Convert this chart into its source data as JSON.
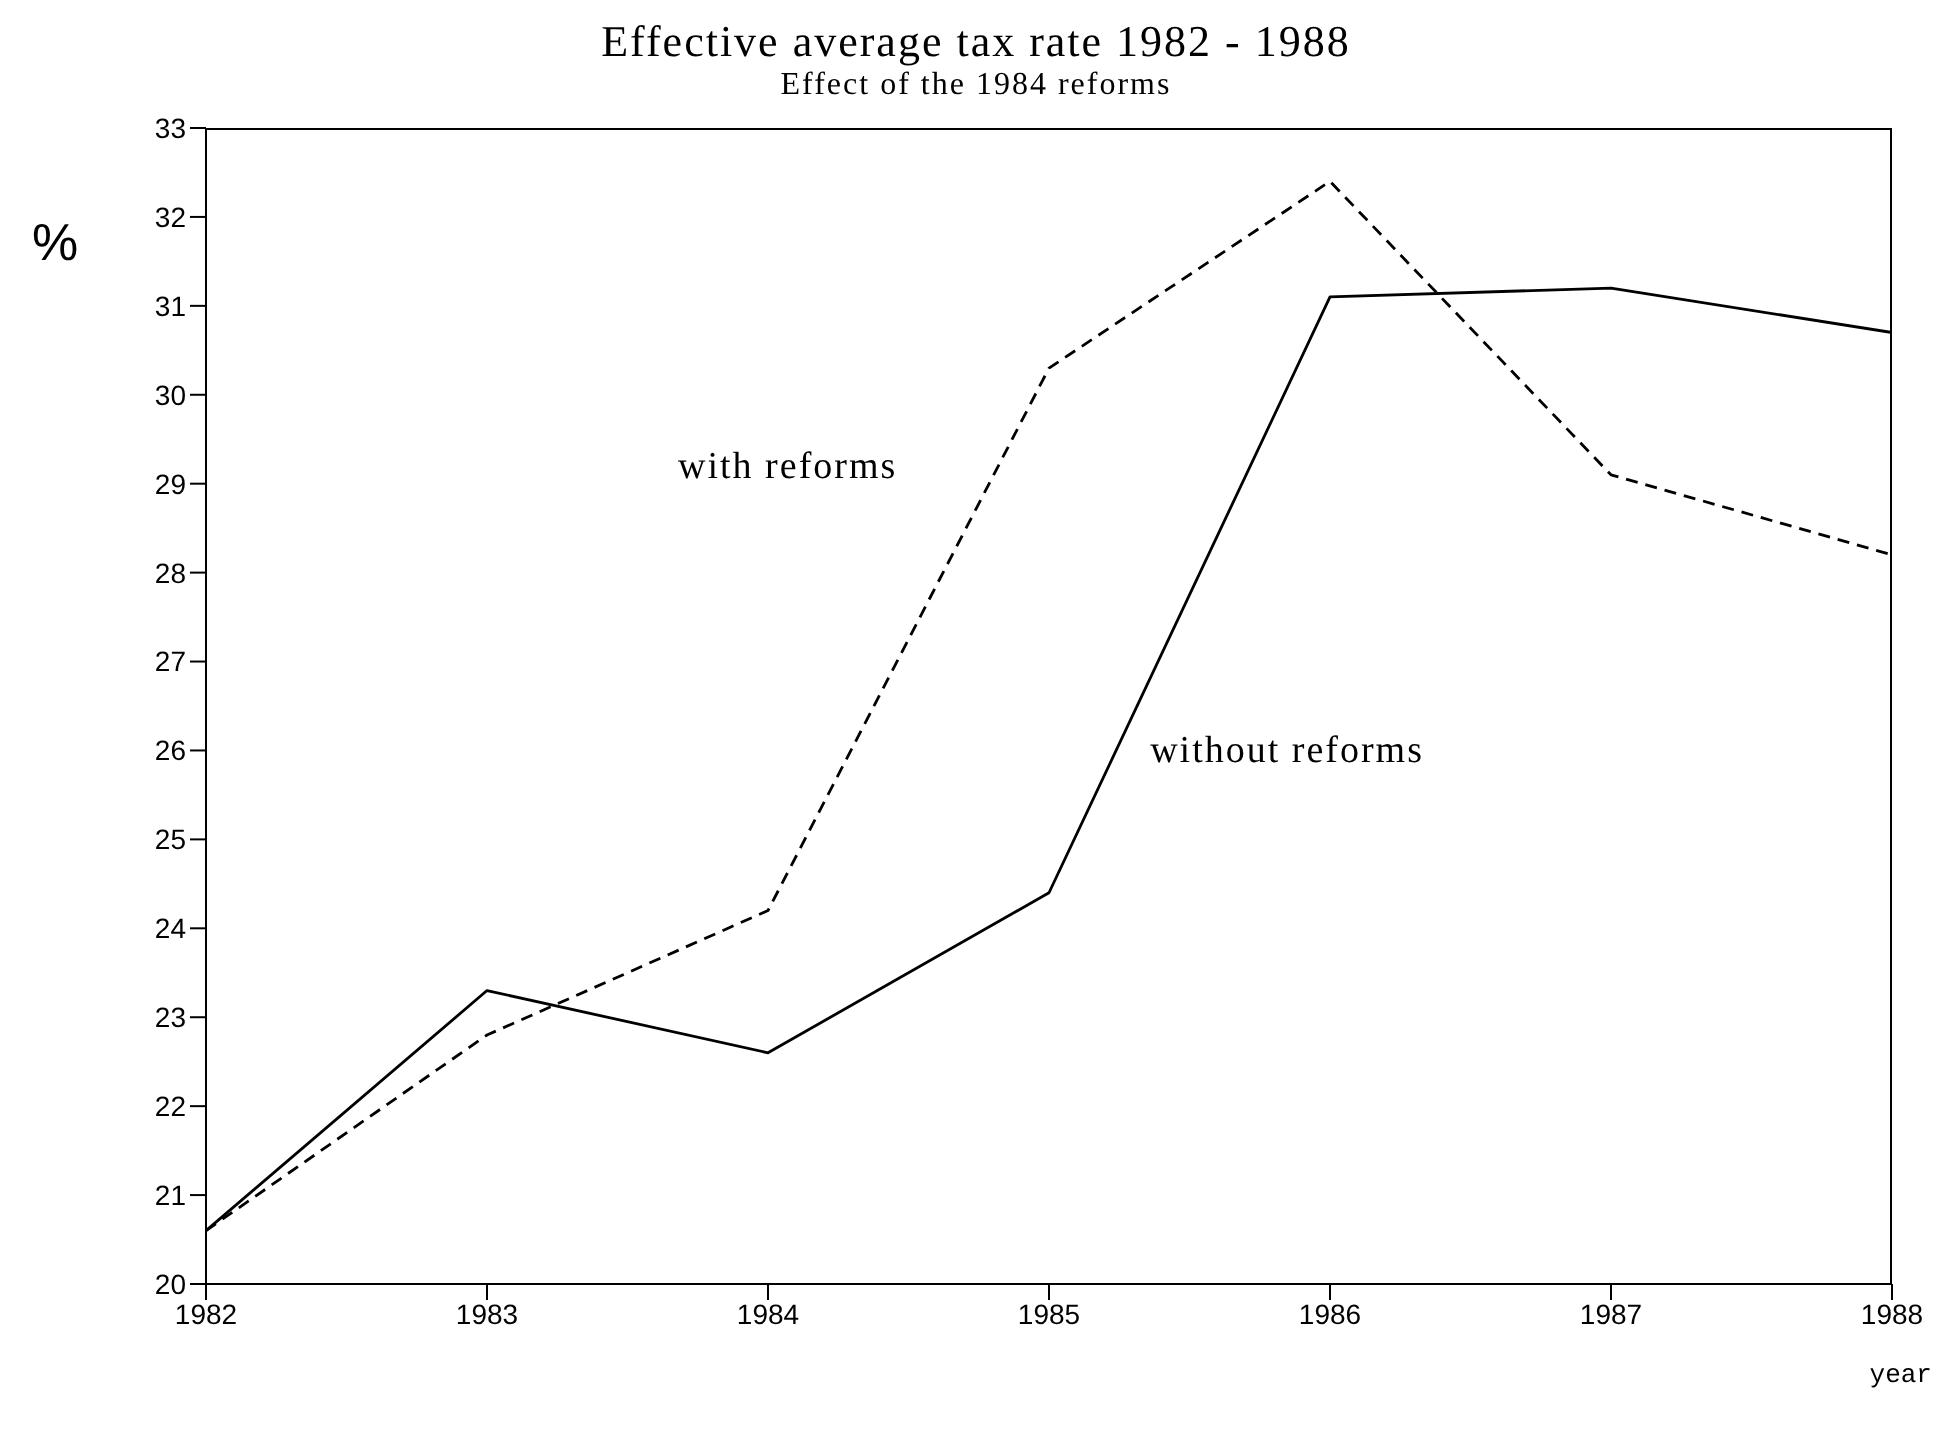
{
  "chart_data": {
    "type": "line",
    "title": "Effective average tax rate 1982 - 1988",
    "subtitle": "Effect of the 1984 reforms",
    "xlabel": "year",
    "ylabel": "%",
    "x": [
      1982,
      1983,
      1984,
      1985,
      1986,
      1987,
      1988
    ],
    "series": [
      {
        "name": "without reforms",
        "color": "#000000",
        "line_style": "solid",
        "values": [
          20.6,
          23.3,
          22.6,
          24.4,
          31.1,
          31.2,
          30.7
        ]
      },
      {
        "name": "with reforms",
        "color": "#000000",
        "line_style": "dashed",
        "values": [
          20.6,
          22.8,
          24.2,
          30.3,
          32.4,
          29.1,
          28.2
        ]
      }
    ],
    "xlim": [
      1982,
      1988
    ],
    "xticks": [
      1982,
      1983,
      1984,
      1985,
      1986,
      1987,
      1988
    ],
    "ylim": [
      20,
      33
    ],
    "yticks": [
      20,
      21,
      22,
      23,
      24,
      25,
      26,
      27,
      28,
      29,
      30,
      31,
      32,
      33
    ],
    "grid": false,
    "legend": false,
    "marker": "none"
  }
}
